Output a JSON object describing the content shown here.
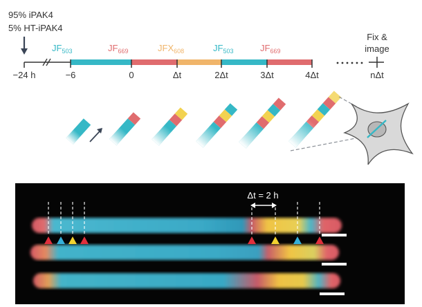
{
  "colors": {
    "teal": "#35b8c6",
    "red": "#e06c6e",
    "yellow": "#f2d250",
    "orange": "#f0b56a",
    "dark": "#333a45",
    "panel_bg": "#050505"
  },
  "labeling": {
    "line1": "95% iPAK4",
    "line2": "5% HT-iPAK4"
  },
  "dyes": {
    "jf503_base": "JF",
    "jf503_sub": "503",
    "jf669_base": "JF",
    "jf669_sub": "669",
    "jfx608_base": "JFX",
    "jfx608_sub": "608"
  },
  "timeline": {
    "t0": "−24 h",
    "t1": "−6",
    "t2": "0",
    "t3": "Δt",
    "t4": "2Δt",
    "t5": "3Δt",
    "t6": "4Δt",
    "t7": "nΔt",
    "fix_line1": "Fix &",
    "fix_line2": "image"
  },
  "micrograph": {
    "delta_label": "Δt = 2 h"
  }
}
